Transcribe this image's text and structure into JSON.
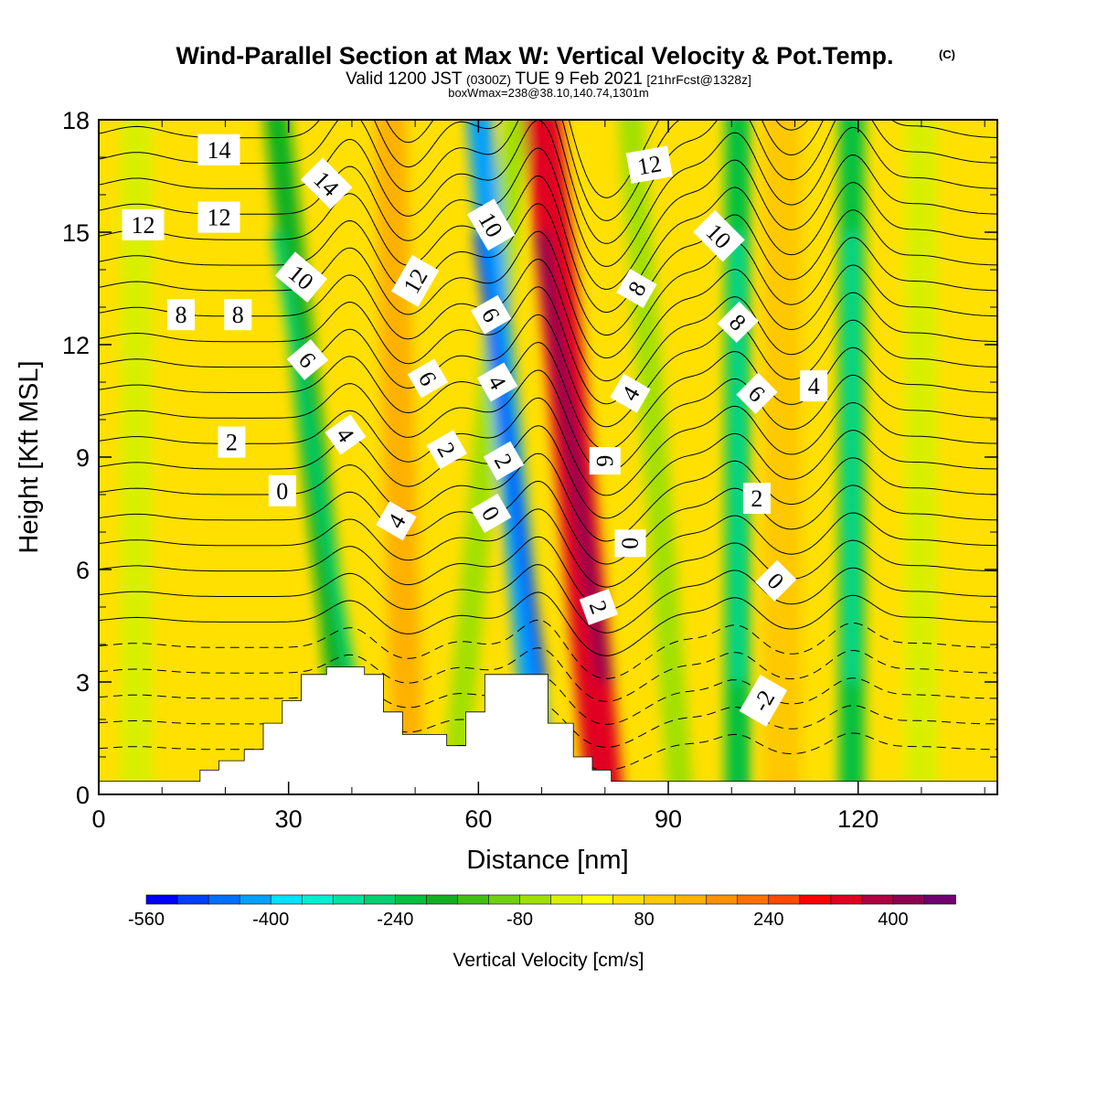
{
  "title": {
    "main": "Wind-Parallel Section at Max W: Vertical Velocity & Pot.Temp.",
    "copyright": "(C)",
    "valid_prefix": "Valid 1200 JST",
    "valid_utc": "(0300Z)",
    "valid_date": "TUE 9 Feb 2021",
    "forecast": "[21hrFcst@1328z]",
    "box_info": "boxWmax=238@38.10,140.74,1301m"
  },
  "colors": {
    "background_field": "#ffe000",
    "contour_line": "#000000",
    "terrain": "#ffffff"
  },
  "chart_data": {
    "type": "heatmap",
    "xlabel": "Distance [nm]",
    "ylabel": "Height [Kft MSL]",
    "xlim": [
      0,
      142
    ],
    "ylim": [
      0,
      18
    ],
    "x_ticks": [
      0,
      30,
      60,
      90,
      120
    ],
    "y_ticks": [
      0,
      3,
      6,
      9,
      12,
      15,
      18
    ],
    "colorbar": {
      "title": "Vertical Velocity [cm/s]",
      "range": [
        -560,
        480
      ],
      "step": 40,
      "tick_values": [
        -560,
        -400,
        -240,
        -80,
        80,
        240,
        400
      ],
      "colors": [
        "#0000ff",
        "#0040ff",
        "#0070ff",
        "#00a0ff",
        "#00e0ff",
        "#00f0d0",
        "#00e0a0",
        "#00d070",
        "#00c040",
        "#10b020",
        "#40c010",
        "#70d010",
        "#a0e000",
        "#d8f000",
        "#ffff00",
        "#ffe000",
        "#ffc800",
        "#ffb000",
        "#ff9000",
        "#ff7000",
        "#ff4800",
        "#ff0000",
        "#e00020",
        "#b00040",
        "#900050",
        "#700070"
      ]
    },
    "velocity_bands": [
      {
        "x": 6,
        "w": 5,
        "lean": 0,
        "value": -40
      },
      {
        "x": 40,
        "w": 4,
        "lean": -12,
        "value": -200
      },
      {
        "x": 49,
        "w": 5,
        "lean": -3,
        "value": 120
      },
      {
        "x": 56,
        "w": 4,
        "lean": 10,
        "value": -80
      },
      {
        "x": 70,
        "w": 4,
        "lean": -10,
        "value": -440
      },
      {
        "x": 80,
        "w": 6,
        "lean": -10,
        "value": 320
      },
      {
        "x": 92,
        "w": 4,
        "lean": -8,
        "value": -80
      },
      {
        "x": 101,
        "w": 4,
        "lean": 0,
        "value": -240
      },
      {
        "x": 108,
        "w": 6,
        "lean": 0,
        "value": 80
      },
      {
        "x": 119,
        "w": 4,
        "lean": 0,
        "value": -240
      },
      {
        "x": 130,
        "w": 5,
        "lean": 0,
        "value": -40
      }
    ],
    "terrain": [
      [
        0,
        0.35
      ],
      [
        16,
        0.35
      ],
      [
        16,
        0.65
      ],
      [
        19,
        0.65
      ],
      [
        19,
        0.9
      ],
      [
        23,
        0.9
      ],
      [
        23,
        1.2
      ],
      [
        26,
        1.2
      ],
      [
        26,
        1.9
      ],
      [
        29,
        1.9
      ],
      [
        29,
        2.5
      ],
      [
        32,
        2.5
      ],
      [
        32,
        3.2
      ],
      [
        36,
        3.2
      ],
      [
        36,
        3.4
      ],
      [
        42,
        3.4
      ],
      [
        42,
        3.2
      ],
      [
        45,
        3.2
      ],
      [
        45,
        2.2
      ],
      [
        48,
        2.2
      ],
      [
        48,
        1.6
      ],
      [
        55,
        1.6
      ],
      [
        55,
        1.3
      ],
      [
        58,
        1.3
      ],
      [
        58,
        2.2
      ],
      [
        61,
        2.2
      ],
      [
        61,
        3.2
      ],
      [
        71,
        3.2
      ],
      [
        71,
        1.9
      ],
      [
        75,
        1.9
      ],
      [
        75,
        1.0
      ],
      [
        78,
        1.0
      ],
      [
        78,
        0.65
      ],
      [
        81,
        0.65
      ],
      [
        81,
        0.35
      ],
      [
        142,
        0.35
      ]
    ],
    "contour_labels": [
      {
        "text": "14",
        "x": 19,
        "y": 17.2,
        "angle": 0
      },
      {
        "text": "12",
        "x": 19,
        "y": 15.4,
        "angle": 0
      },
      {
        "text": "12",
        "x": 7,
        "y": 15.2,
        "angle": 0
      },
      {
        "text": "8",
        "x": 13,
        "y": 12.8,
        "angle": 0
      },
      {
        "text": "8",
        "x": 22,
        "y": 12.8,
        "angle": 0
      },
      {
        "text": "2",
        "x": 21,
        "y": 9.4,
        "angle": 0
      },
      {
        "text": "0",
        "x": 29,
        "y": 8.1,
        "angle": 0
      },
      {
        "text": "14",
        "x": 36,
        "y": 16.3,
        "angle": 45
      },
      {
        "text": "10",
        "x": 32,
        "y": 13.8,
        "angle": 40
      },
      {
        "text": "6",
        "x": 33,
        "y": 11.6,
        "angle": 50
      },
      {
        "text": "4",
        "x": 39,
        "y": 9.6,
        "angle": 55
      },
      {
        "text": "4",
        "x": 47,
        "y": 7.3,
        "angle": -60
      },
      {
        "text": "12",
        "x": 50,
        "y": 13.7,
        "angle": -60
      },
      {
        "text": "6",
        "x": 52,
        "y": 11.1,
        "angle": 60
      },
      {
        "text": "2",
        "x": 55,
        "y": 9.2,
        "angle": 60
      },
      {
        "text": "10",
        "x": 62,
        "y": 15.2,
        "angle": 60
      },
      {
        "text": "6",
        "x": 62,
        "y": 12.8,
        "angle": 60
      },
      {
        "text": "4",
        "x": 63,
        "y": 11.0,
        "angle": 60
      },
      {
        "text": "2",
        "x": 64,
        "y": 8.9,
        "angle": 60
      },
      {
        "text": "0",
        "x": 62,
        "y": 7.5,
        "angle": 60
      },
      {
        "text": "12",
        "x": 87,
        "y": 16.8,
        "angle": -10
      },
      {
        "text": "8",
        "x": 85,
        "y": 13.5,
        "angle": -60
      },
      {
        "text": "4",
        "x": 84,
        "y": 10.7,
        "angle": -60
      },
      {
        "text": "6",
        "x": 80,
        "y": 8.9,
        "angle": 90
      },
      {
        "text": "0",
        "x": 84,
        "y": 6.7,
        "angle": 90
      },
      {
        "text": "2",
        "x": 79,
        "y": 5.0,
        "angle": 70
      },
      {
        "text": "10",
        "x": 98,
        "y": 14.9,
        "angle": 45
      },
      {
        "text": "8",
        "x": 101,
        "y": 12.6,
        "angle": 45
      },
      {
        "text": "6",
        "x": 104,
        "y": 10.7,
        "angle": 45
      },
      {
        "text": "4",
        "x": 113,
        "y": 10.9,
        "angle": 0
      },
      {
        "text": "2",
        "x": 104,
        "y": 7.9,
        "angle": 0
      },
      {
        "text": "0",
        "x": 107,
        "y": 5.7,
        "angle": 45
      },
      {
        "text": "-2",
        "x": 105,
        "y": 2.5,
        "angle": -60
      }
    ]
  }
}
